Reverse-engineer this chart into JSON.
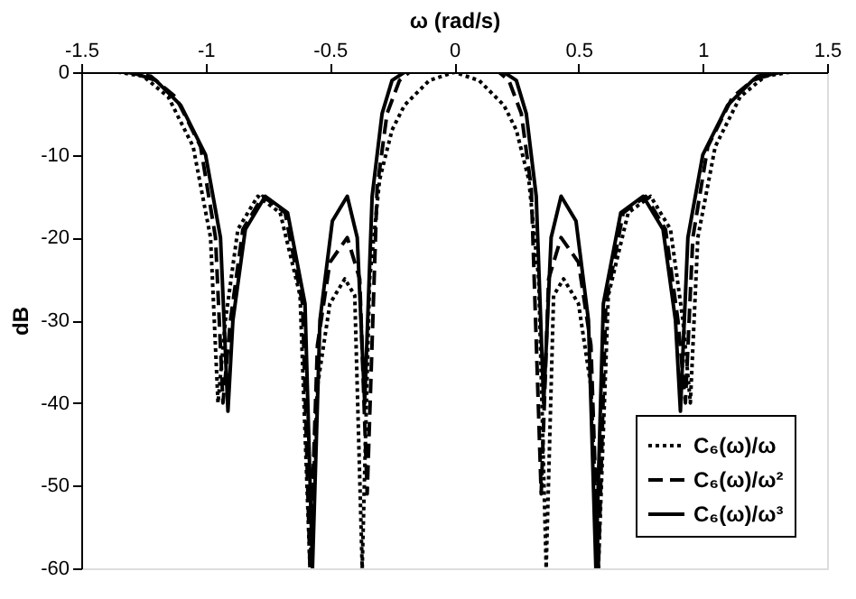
{
  "chart_data": {
    "type": "line",
    "xlabel": "ω (rad/s)",
    "ylabel": "dB",
    "xlim": [
      -1.5,
      1.5
    ],
    "xticks": [
      -1.5,
      -1,
      -0.5,
      0,
      0.5,
      1,
      1.5
    ],
    "ylim": [
      -60,
      0
    ],
    "yticks": [
      -60,
      -50,
      -40,
      -30,
      -20,
      -10,
      0
    ],
    "grid": false,
    "legend": "bottom right",
    "marker": "none",
    "series": [
      {
        "name": "C₆(ω)/ω",
        "color": "#000000",
        "line_style": "dotted",
        "x": [
          -1.5,
          -1.35,
          -1.25,
          -1.15,
          -1.05,
          -0.98,
          -0.95,
          -0.92,
          -0.87,
          -0.79,
          -0.7,
          -0.62,
          -0.58,
          -0.55,
          -0.5,
          -0.44,
          -0.4,
          -0.37,
          -0.34,
          -0.3,
          -0.25,
          -0.2,
          -0.1,
          0,
          0.1,
          0.2,
          0.25,
          0.3,
          0.34,
          0.37,
          0.4,
          0.44,
          0.5,
          0.55,
          0.58,
          0.62,
          0.7,
          0.79,
          0.87,
          0.92,
          0.95,
          0.98,
          1.05,
          1.15,
          1.25,
          1.35,
          1.5
        ],
        "values": [
          0,
          0,
          -0.5,
          -3,
          -9,
          -20,
          -40,
          -30,
          -19,
          -15,
          -17,
          -27,
          -60,
          -38,
          -28,
          -25,
          -27,
          -60,
          -25,
          -13,
          -7,
          -4,
          -1,
          0,
          -1,
          -4,
          -7,
          -13,
          -25,
          -60,
          -27,
          -25,
          -28,
          -38,
          -60,
          -27,
          -17,
          -15,
          -19,
          -30,
          -40,
          -20,
          -9,
          -3,
          -0.5,
          0,
          0
        ]
      },
      {
        "name": "C₆(ω)/ω²",
        "color": "#000000",
        "line_style": "dashed",
        "x": [
          -1.5,
          -1.32,
          -1.22,
          -1.12,
          -1.02,
          -0.96,
          -0.93,
          -0.9,
          -0.85,
          -0.77,
          -0.68,
          -0.61,
          -0.58,
          -0.55,
          -0.5,
          -0.43,
          -0.38,
          -0.35,
          -0.31,
          -0.27,
          -0.22,
          -0.18,
          0,
          0.18,
          0.22,
          0.27,
          0.31,
          0.35,
          0.38,
          0.43,
          0.5,
          0.55,
          0.58,
          0.61,
          0.68,
          0.77,
          0.85,
          0.9,
          0.93,
          0.96,
          1.02,
          1.12,
          1.22,
          1.32,
          1.5
        ],
        "values": [
          0,
          0,
          -0.5,
          -3,
          -9,
          -20,
          -40,
          -30,
          -19,
          -15,
          -17,
          -28,
          -60,
          -33,
          -23,
          -20,
          -25,
          -51,
          -14,
          -5,
          -1,
          0,
          0,
          0,
          -1,
          -5,
          -14,
          -51,
          -25,
          -20,
          -23,
          -33,
          -60,
          -28,
          -17,
          -15,
          -19,
          -30,
          -40,
          -20,
          -9,
          -3,
          -0.5,
          0,
          0
        ]
      },
      {
        "name": "C₆(ω)/ω³",
        "color": "#000000",
        "line_style": "solid",
        "x": [
          -1.5,
          -1.3,
          -1.2,
          -1.1,
          -1.0,
          -0.94,
          -0.91,
          -0.89,
          -0.84,
          -0.76,
          -0.67,
          -0.6,
          -0.57,
          -0.54,
          -0.49,
          -0.43,
          -0.39,
          -0.36,
          -0.33,
          -0.29,
          -0.25,
          -0.2,
          0,
          0.2,
          0.25,
          0.29,
          0.33,
          0.36,
          0.39,
          0.43,
          0.49,
          0.54,
          0.57,
          0.6,
          0.67,
          0.76,
          0.84,
          0.89,
          0.91,
          0.94,
          1.0,
          1.1,
          1.2,
          1.3,
          1.5
        ],
        "values": [
          0,
          0,
          -1,
          -4,
          -10,
          -20,
          -41,
          -30,
          -19,
          -15,
          -17,
          -28,
          -60,
          -30,
          -18,
          -15,
          -20,
          -40,
          -15,
          -5,
          -1,
          0,
          0,
          0,
          -1,
          -5,
          -15,
          -40,
          -20,
          -15,
          -18,
          -30,
          -60,
          -28,
          -17,
          -15,
          -19,
          -30,
          -41,
          -20,
          -10,
          -4,
          -1,
          0,
          0
        ]
      }
    ]
  }
}
